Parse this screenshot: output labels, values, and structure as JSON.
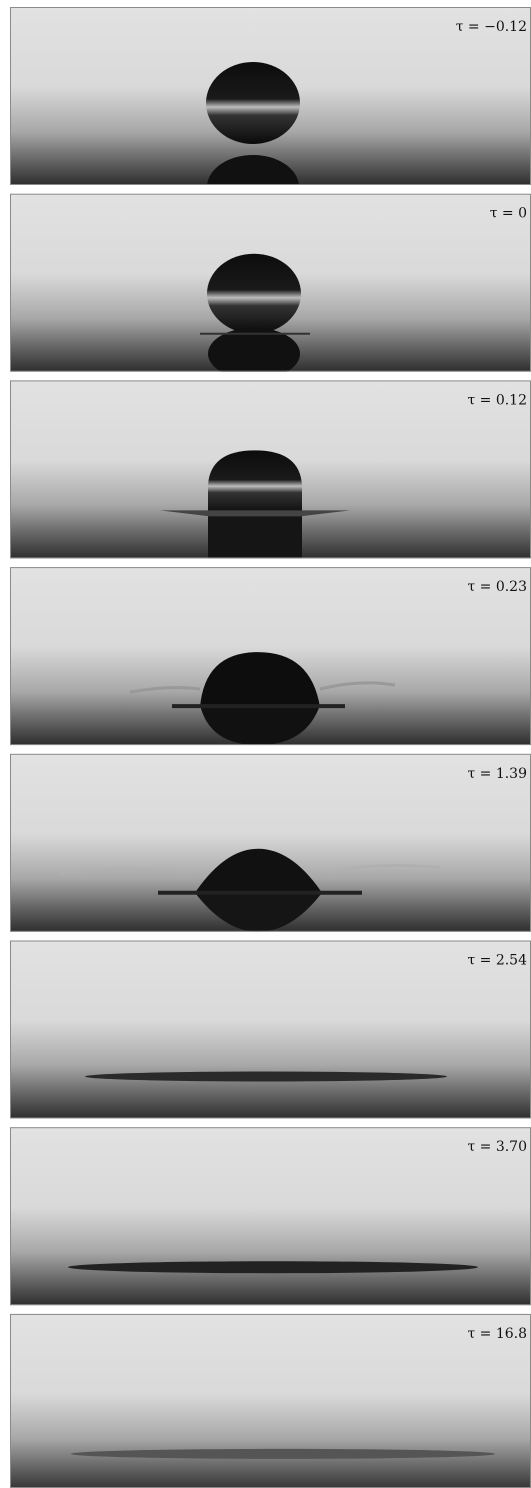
{
  "panels": [
    {
      "label": "τ = −0.12"
    },
    {
      "label": "τ = 0"
    },
    {
      "label": "τ = 0.12"
    },
    {
      "label": "τ = 0.23"
    },
    {
      "label": "τ = 1.39"
    },
    {
      "label": "τ = 2.54"
    },
    {
      "label": "τ = 3.70"
    },
    {
      "label": "τ = 16.8"
    }
  ]
}
